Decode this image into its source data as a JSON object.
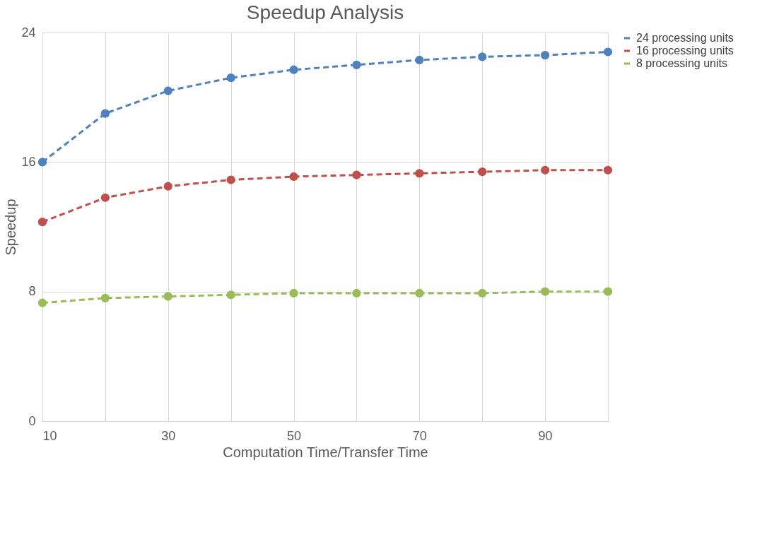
{
  "chart_data": {
    "type": "line",
    "title": "Speedup Analysis",
    "xlabel": "Computation Time/Transfer Time",
    "ylabel": "Speedup",
    "x": [
      10,
      20,
      30,
      40,
      50,
      60,
      70,
      80,
      90,
      100
    ],
    "xlim": [
      10,
      100
    ],
    "xticks": [
      10,
      {
        "value": 20,
        "label": null
      },
      30,
      {
        "value": 40,
        "label": null
      },
      50,
      {
        "value": 60,
        "label": null
      },
      70,
      {
        "value": 80,
        "label": null
      },
      90,
      {
        "value": 100,
        "label": null
      }
    ],
    "ylim": [
      0,
      24
    ],
    "yticks": [
      0,
      8,
      16,
      24
    ],
    "grid": true,
    "legend": "right",
    "marker": "circle",
    "line_style": "dashed",
    "series": [
      {
        "name": "24 processing units",
        "color": "#4f81bd",
        "values": [
          16.0,
          19.0,
          20.4,
          21.2,
          21.7,
          22.0,
          22.3,
          22.5,
          22.6,
          22.8
        ]
      },
      {
        "name": "16 processing units",
        "color": "#c0504d",
        "values": [
          12.3,
          13.8,
          14.5,
          14.9,
          15.1,
          15.2,
          15.3,
          15.4,
          15.5,
          15.5
        ]
      },
      {
        "name": "8 processing units",
        "color": "#9bbb59",
        "values": [
          7.3,
          7.6,
          7.7,
          7.8,
          7.9,
          7.9,
          7.9,
          7.9,
          8.0,
          8.0
        ]
      }
    ]
  }
}
